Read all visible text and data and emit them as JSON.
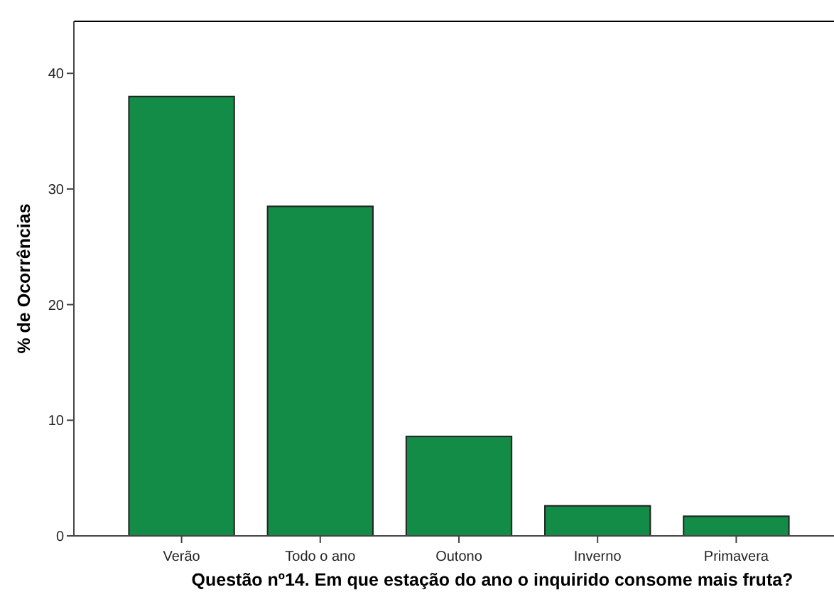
{
  "chart_data": {
    "type": "bar",
    "xlabel": "Questão nº14. Em que estação do ano o inquirido consome mais fruta?",
    "ylabel": "% de Ocorrências",
    "categories": [
      "Verão",
      "Todo o ano",
      "Outono",
      "Inverno",
      "Primavera"
    ],
    "values": [
      38.0,
      28.5,
      8.6,
      2.6,
      1.7
    ],
    "color": "#128c47",
    "ylim": [
      0,
      44.5
    ],
    "yticks": [
      0,
      10,
      20,
      30,
      40
    ],
    "grid": false
  }
}
